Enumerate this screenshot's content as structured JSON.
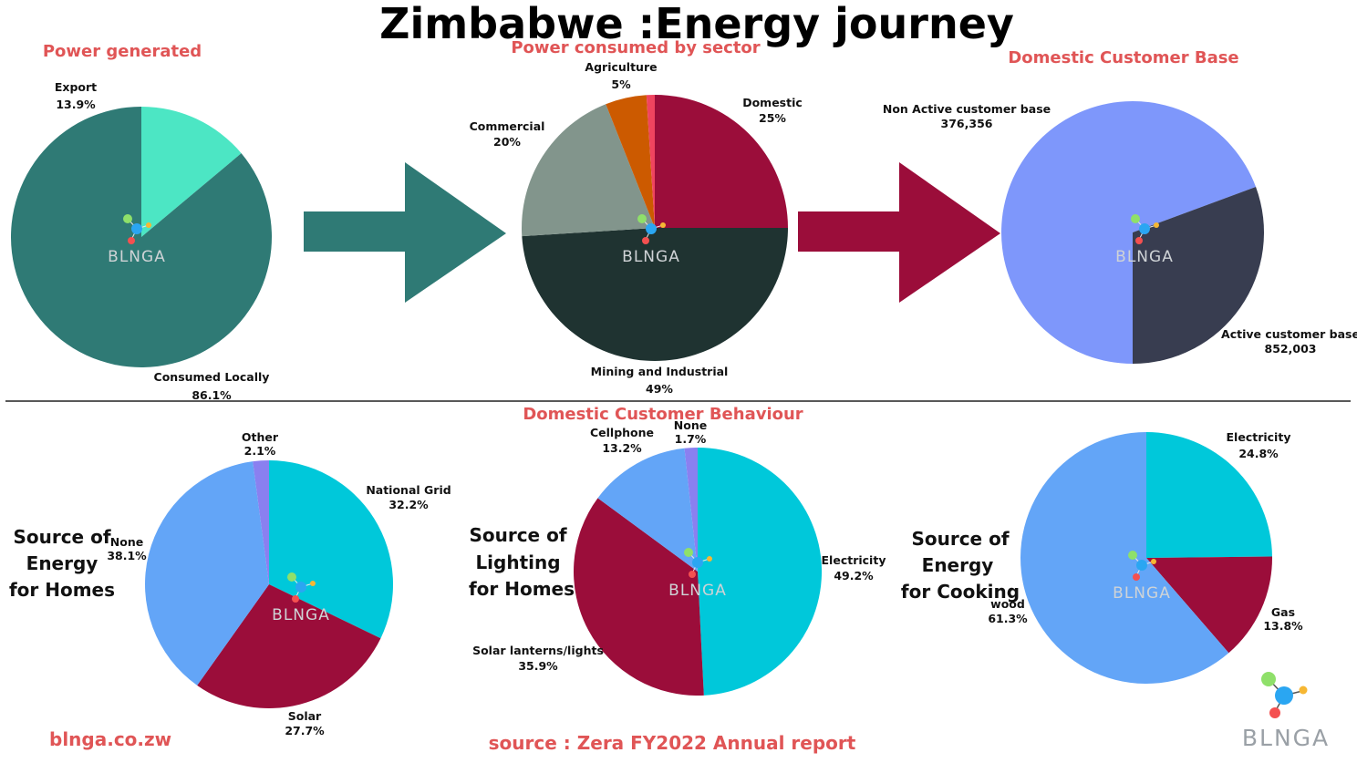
{
  "title": "Zimbabwe :Energy journey",
  "watermark": "BLNGA",
  "footer": {
    "site": "blnga.co.zw",
    "source": "source : Zera FY2022  Annual report",
    "logo_text": "BLNGA"
  },
  "section_heading": "Domestic Customer Behaviour",
  "colors": {
    "heading": "#e05556",
    "teal": "#2f7a75",
    "crimson": "#9b0d3a",
    "divider": "#222222"
  },
  "chart_data": [
    {
      "type": "pie",
      "title": "Power generated",
      "slices": [
        {
          "label": "Export",
          "value_label": "13.9%",
          "value": 13.9,
          "color": "#4ce6c4"
        },
        {
          "label": "Consumed Locally",
          "value_label": "86.1%",
          "value": 86.1,
          "color": "#2f7a75"
        }
      ]
    },
    {
      "type": "pie",
      "title": "Power consumed by sector",
      "slices": [
        {
          "label": "Domestic",
          "value_label": "25%",
          "value": 25,
          "color": "#9b0d3a"
        },
        {
          "label": "Mining and Industrial",
          "value_label": "49%",
          "value": 49,
          "color": "#1f3331"
        },
        {
          "label": "Commercial",
          "value_label": "20%",
          "value": 20,
          "color": "#82958c"
        },
        {
          "label": "Agriculture",
          "value_label": "5%",
          "value": 5,
          "color": "#cc5a00"
        },
        {
          "label": "",
          "value_label": "",
          "value": 1,
          "color": "#f0445f"
        }
      ]
    },
    {
      "type": "pie",
      "title": "Domestic Customer Base",
      "slices": [
        {
          "label": "Active customer base",
          "value_label": "852,003",
          "value": 852003,
          "color": "#7e97fb"
        },
        {
          "label": "Non Active customer base",
          "value_label": "376,356",
          "value": 376356,
          "color": "#383d50"
        }
      ]
    },
    {
      "type": "pie",
      "title": "Source of Energy for Homes",
      "title_lines": [
        "Source of",
        "Energy",
        "for Homes"
      ],
      "slices": [
        {
          "label": "National Grid",
          "value_label": "32.2%",
          "value": 32.2,
          "color": "#00c8da"
        },
        {
          "label": "Solar",
          "value_label": "27.7%",
          "value": 27.7,
          "color": "#9b0d3a"
        },
        {
          "label": "None",
          "value_label": "38.1%",
          "value": 38.1,
          "color": "#63a5f7"
        },
        {
          "label": "Other",
          "value_label": "2.1%",
          "value": 2.1,
          "color": "#8a80f0"
        }
      ]
    },
    {
      "type": "pie",
      "title": "Source of Lighting for Homes",
      "title_lines": [
        "Source of",
        "Lighting",
        "for Homes"
      ],
      "slices": [
        {
          "label": "Electricity",
          "value_label": "49.2%",
          "value": 49.2,
          "color": "#00c8da"
        },
        {
          "label": "Solar lanterns/lights",
          "value_label": "35.9%",
          "value": 35.9,
          "color": "#9b0d3a"
        },
        {
          "label": "Cellphone",
          "value_label": "13.2%",
          "value": 13.2,
          "color": "#63a5f7"
        },
        {
          "label": "None",
          "value_label": "1.7%",
          "value": 1.7,
          "color": "#8a80f0"
        }
      ]
    },
    {
      "type": "pie",
      "title": "Source of Energy for Cooking",
      "title_lines": [
        "Source of",
        "Energy",
        "for Cooking"
      ],
      "slices": [
        {
          "label": "Electricity",
          "value_label": "24.8%",
          "value": 24.8,
          "color": "#00c8da"
        },
        {
          "label": "Gas",
          "value_label": "13.8%",
          "value": 13.8,
          "color": "#9b0d3a"
        },
        {
          "label": "wood",
          "value_label": "61.3%",
          "value": 61.3,
          "color": "#63a5f7"
        }
      ]
    }
  ]
}
